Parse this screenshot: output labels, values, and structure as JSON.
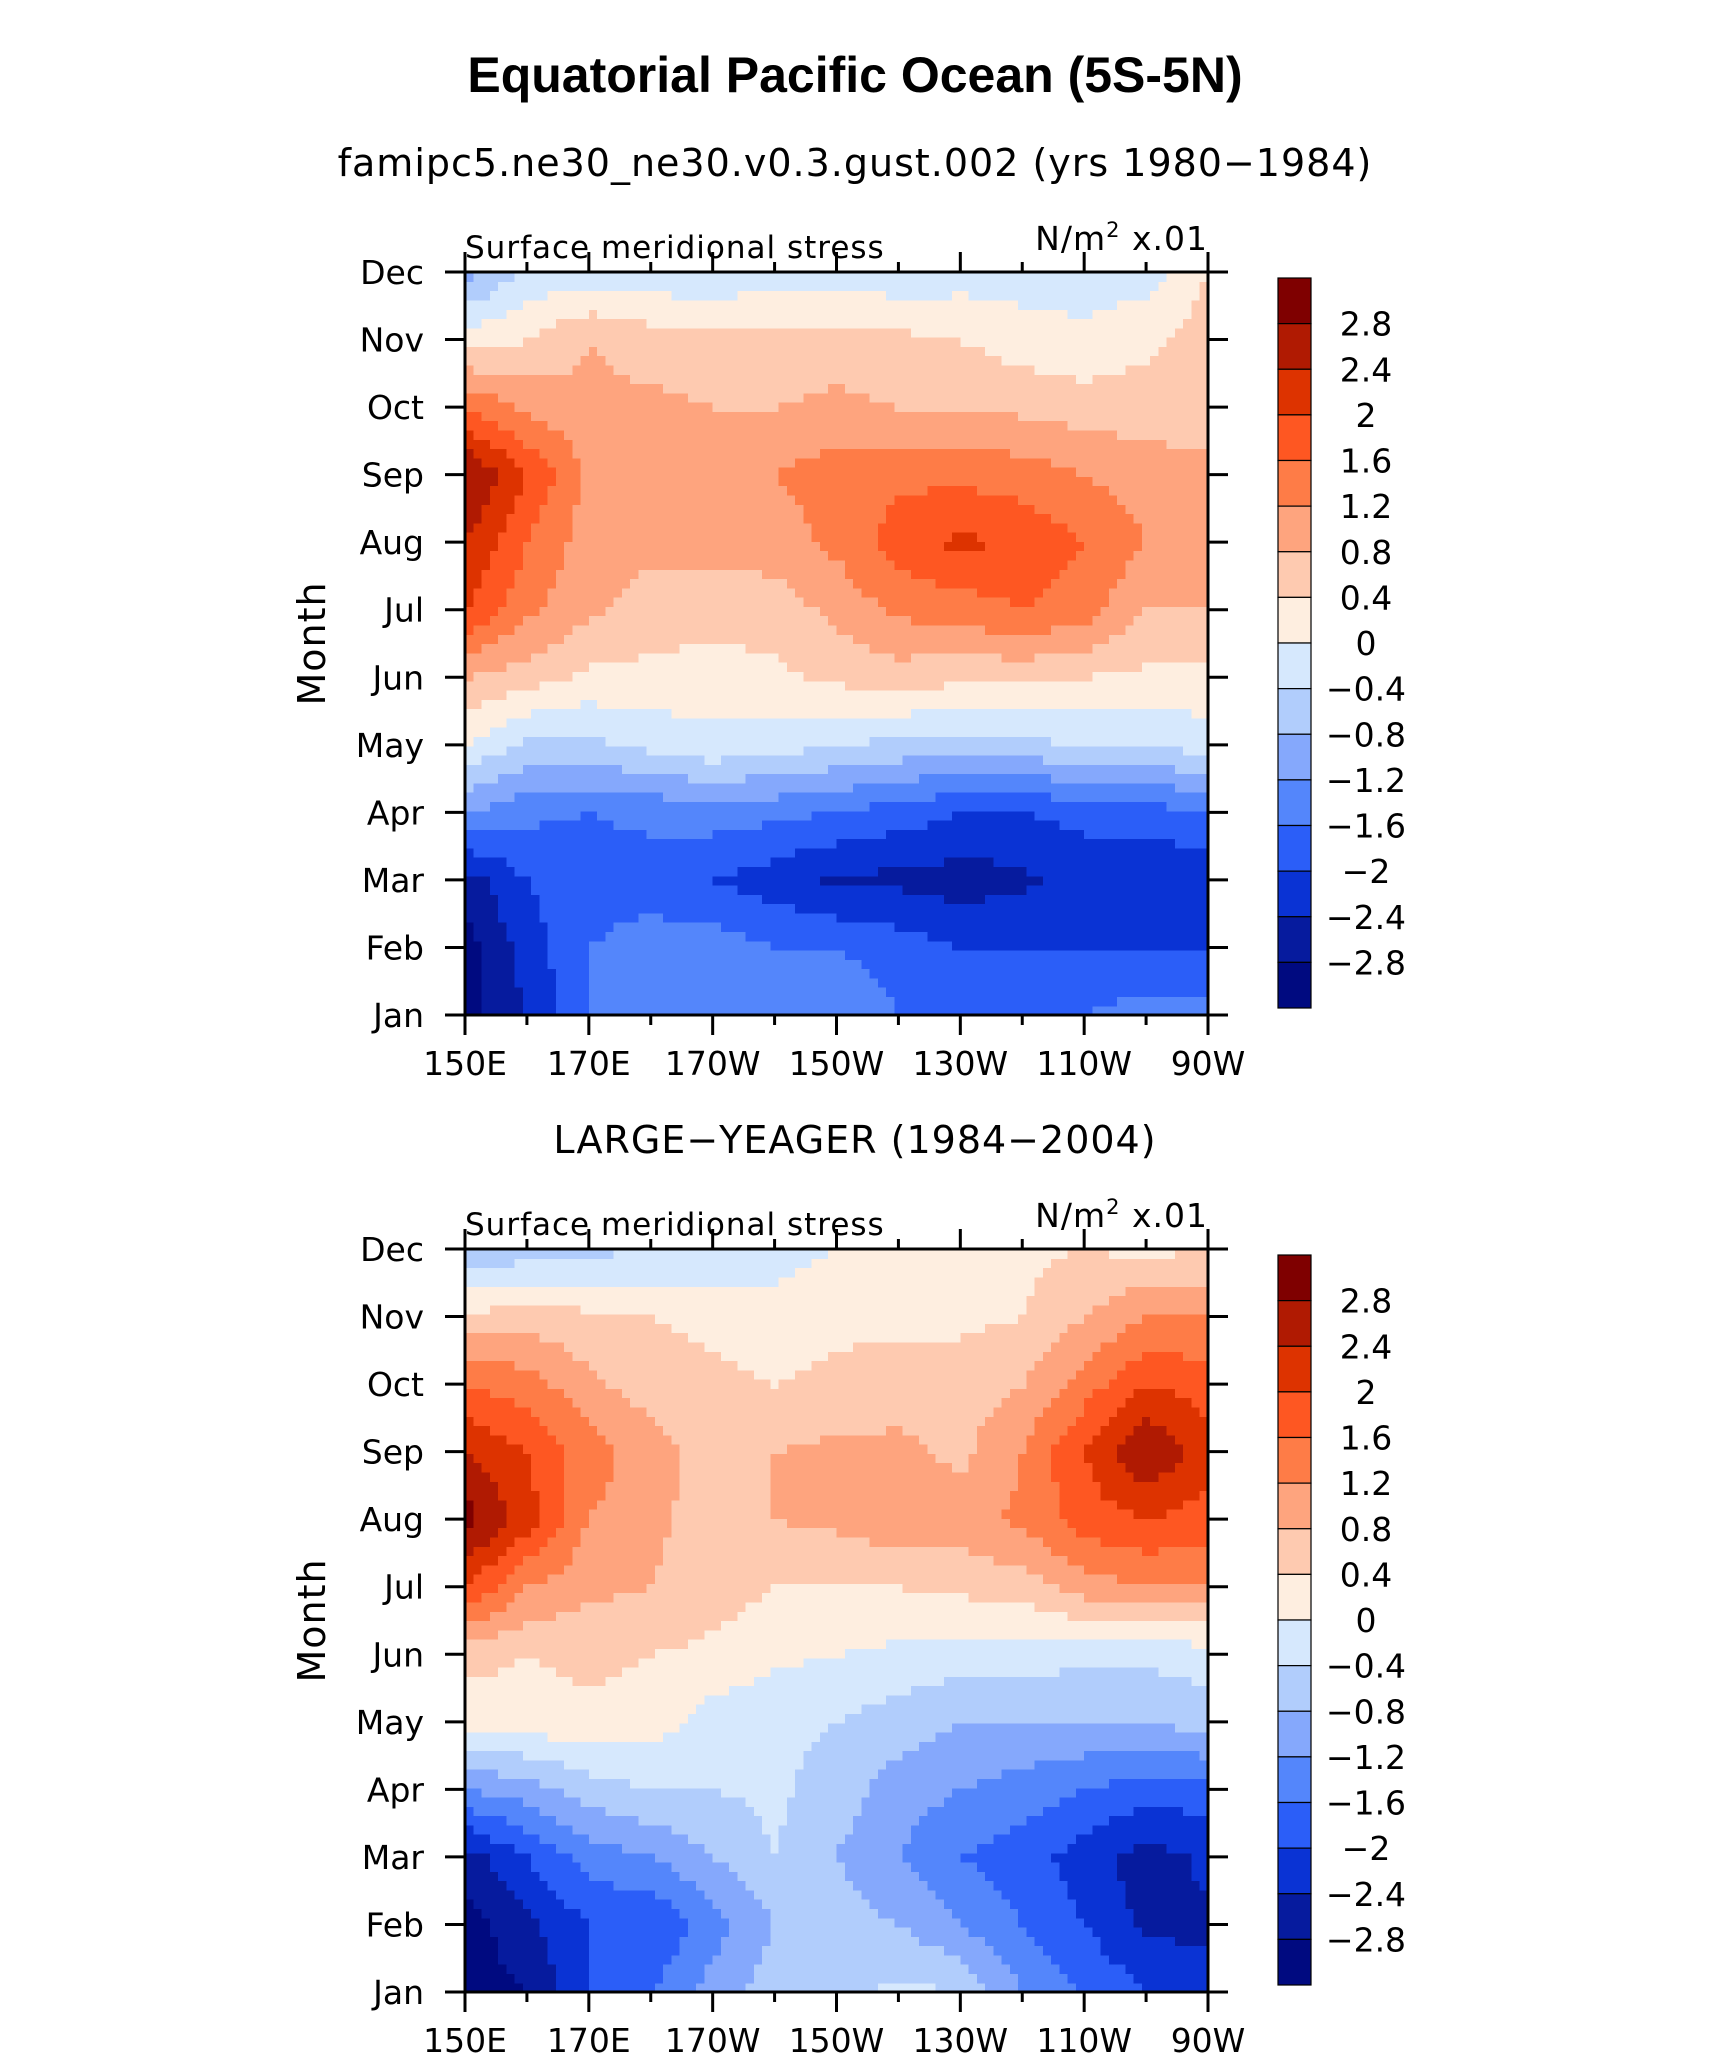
{
  "title": "Equatorial Pacific Ocean (5S-5N)",
  "colorbar": {
    "labels": [
      "2.8",
      "2.4",
      "2",
      "1.6",
      "1.2",
      "0.8",
      "0.4",
      "0",
      "−0.4",
      "−0.8",
      "−1.2",
      "−1.6",
      "−2",
      "−2.4",
      "−2.8"
    ],
    "colors": [
      "#7f0000",
      "#b01a02",
      "#dd3300",
      "#fe5722",
      "#fe7c47",
      "#fea47e",
      "#fecab0",
      "#feeee0",
      "#d6e8fd",
      "#b1cdfc",
      "#85a8fc",
      "#5486fb",
      "#2b5ef8",
      "#0a33d4",
      "#061b9e",
      "#000a80"
    ]
  },
  "chart_data": [
    {
      "type": "heatmap",
      "title": "famipc5.ne30_ne30.v0.3.gust.002 (yrs 1980−1984)",
      "left_string": "Surface meridional stress",
      "units": "N/m",
      "units_sup": "2",
      "scale": "x.01",
      "ylabel": "Month",
      "yticks": [
        "Jan",
        "Feb",
        "Mar",
        "Apr",
        "May",
        "Jun",
        "Jul",
        "Aug",
        "Sep",
        "Oct",
        "Nov",
        "Dec"
      ],
      "xticks": [
        "150E",
        "170E",
        "170W",
        "150W",
        "130W",
        "110W",
        "90W"
      ],
      "xlim_degE": [
        150,
        270
      ],
      "clevels": [
        -2.8,
        -2.4,
        -2.0,
        -1.6,
        -1.2,
        -0.8,
        -0.4,
        0,
        0.4,
        0.8,
        1.2,
        1.6,
        2.0,
        2.4,
        2.8
      ],
      "lon_degE": [
        150,
        160,
        170,
        180,
        190,
        200,
        210,
        220,
        230,
        240,
        250,
        260,
        270
      ],
      "values": [
        [
          -3.0,
          -2.4,
          -1.6,
          -1.2,
          -1.2,
          -1.2,
          -1.2,
          -1.6,
          -1.6,
          -1.6,
          -1.6,
          -1.4,
          -1.4
        ],
        [
          -3.0,
          -2.2,
          -1.6,
          -1.4,
          -1.4,
          -1.6,
          -1.6,
          -1.8,
          -2.0,
          -2.0,
          -2.0,
          -2.0,
          -2.0
        ],
        [
          -2.6,
          -2.0,
          -1.8,
          -1.8,
          -2.0,
          -2.2,
          -2.5,
          -2.5,
          -2.6,
          -2.5,
          -2.2,
          -2.3,
          -2.4
        ],
        [
          -1.2,
          -1.5,
          -1.6,
          -1.5,
          -1.4,
          -1.5,
          -1.6,
          -1.8,
          -2.0,
          -2.0,
          -1.9,
          -1.8,
          -1.6
        ],
        [
          0.0,
          -0.5,
          -0.5,
          -0.3,
          -0.1,
          -0.2,
          -0.4,
          -0.5,
          -0.6,
          -0.5,
          -0.4,
          -0.4,
          -0.2
        ],
        [
          0.8,
          0.6,
          0.3,
          0.3,
          0.2,
          0.3,
          0.5,
          0.6,
          0.5,
          0.5,
          0.4,
          0.3,
          0.3
        ],
        [
          2.0,
          1.3,
          0.9,
          0.6,
          0.6,
          0.6,
          0.9,
          1.3,
          1.4,
          1.6,
          1.4,
          0.8,
          0.8
        ],
        [
          2.4,
          1.6,
          1.0,
          0.9,
          0.9,
          1.0,
          1.3,
          1.8,
          2.1,
          1.9,
          1.6,
          1.2,
          0.9
        ],
        [
          2.9,
          2.0,
          1.1,
          0.9,
          0.9,
          1.2,
          1.4,
          1.5,
          1.5,
          1.4,
          1.2,
          1.0,
          0.9
        ],
        [
          1.6,
          1.1,
          0.9,
          0.9,
          0.8,
          0.8,
          0.9,
          0.8,
          0.8,
          0.7,
          0.6,
          0.6,
          0.6
        ],
        [
          0.2,
          0.4,
          0.8,
          0.6,
          0.5,
          0.5,
          0.6,
          0.5,
          0.4,
          0.2,
          0.1,
          0.3,
          0.6
        ],
        [
          -1.0,
          -0.3,
          -0.2,
          -0.3,
          -0.3,
          -0.2,
          -0.2,
          -0.3,
          -0.2,
          -0.2,
          -0.2,
          -0.2,
          0.4
        ]
      ]
    },
    {
      "type": "heatmap",
      "title": "LARGE−YEAGER (1984−2004)",
      "left_string": "Surface meridional stress",
      "units": "N/m",
      "units_sup": "2",
      "scale": "x.01",
      "ylabel": "Month",
      "yticks": [
        "Jan",
        "Feb",
        "Mar",
        "Apr",
        "May",
        "Jun",
        "Jul",
        "Aug",
        "Sep",
        "Oct",
        "Nov",
        "Dec"
      ],
      "xticks": [
        "150E",
        "170E",
        "170W",
        "150W",
        "130W",
        "110W",
        "90W"
      ],
      "xlim_degE": [
        150,
        270
      ],
      "clevels": [
        -2.8,
        -2.4,
        -2.0,
        -1.6,
        -1.2,
        -0.8,
        -0.4,
        0,
        0.4,
        0.8,
        1.2,
        1.6,
        2.0,
        2.4,
        2.8
      ],
      "lon_degE": [
        150,
        160,
        170,
        180,
        190,
        200,
        210,
        220,
        230,
        240,
        250,
        260,
        270
      ],
      "values": [
        [
          -3.0,
          -2.8,
          -2.0,
          -1.6,
          -1.0,
          -0.6,
          -0.5,
          -0.3,
          -0.4,
          -1.2,
          -1.6,
          -2.0,
          -2.2
        ],
        [
          -3.0,
          -2.5,
          -2.0,
          -2.0,
          -1.4,
          -0.8,
          -0.6,
          -0.8,
          -1.2,
          -1.6,
          -2.0,
          -2.5,
          -2.5
        ],
        [
          -2.6,
          -2.0,
          -1.4,
          -1.2,
          -0.8,
          -0.4,
          -0.8,
          -1.2,
          -1.6,
          -1.8,
          -2.2,
          -2.6,
          -2.3
        ],
        [
          -1.2,
          -1.0,
          -0.6,
          -0.4,
          -0.4,
          -0.3,
          -0.6,
          -1.0,
          -1.2,
          -1.4,
          -1.6,
          -1.8,
          -1.8
        ],
        [
          0.1,
          0.2,
          0.3,
          0.2,
          -0.2,
          -0.3,
          -0.4,
          -0.6,
          -0.8,
          -0.8,
          -0.8,
          -0.8,
          -0.6
        ],
        [
          0.6,
          0.4,
          0.5,
          0.4,
          0.3,
          0.1,
          0.0,
          -0.1,
          -0.2,
          -0.2,
          -0.3,
          -0.3,
          -0.2
        ],
        [
          2.0,
          1.2,
          0.9,
          0.8,
          0.6,
          0.4,
          0.4,
          0.4,
          0.5,
          0.6,
          1.0,
          1.2,
          1.2
        ],
        [
          3.0,
          2.2,
          1.2,
          0.9,
          0.6,
          0.8,
          0.9,
          1.1,
          1.0,
          1.3,
          1.8,
          2.0,
          1.8
        ],
        [
          2.4,
          2.0,
          1.4,
          1.0,
          0.6,
          0.8,
          0.9,
          0.9,
          0.7,
          1.2,
          2.0,
          2.8,
          2.2
        ],
        [
          1.6,
          1.4,
          0.9,
          0.6,
          0.5,
          0.4,
          0.5,
          0.6,
          0.6,
          0.8,
          1.4,
          2.0,
          1.8
        ],
        [
          0.5,
          0.6,
          0.5,
          0.4,
          0.3,
          0.2,
          0.3,
          0.3,
          0.3,
          0.4,
          0.8,
          1.2,
          1.2
        ],
        [
          -0.8,
          -0.6,
          -0.5,
          -0.4,
          -0.3,
          -0.2,
          0.0,
          0.2,
          0.3,
          0.3,
          0.4,
          0.3,
          0.4
        ]
      ]
    }
  ]
}
